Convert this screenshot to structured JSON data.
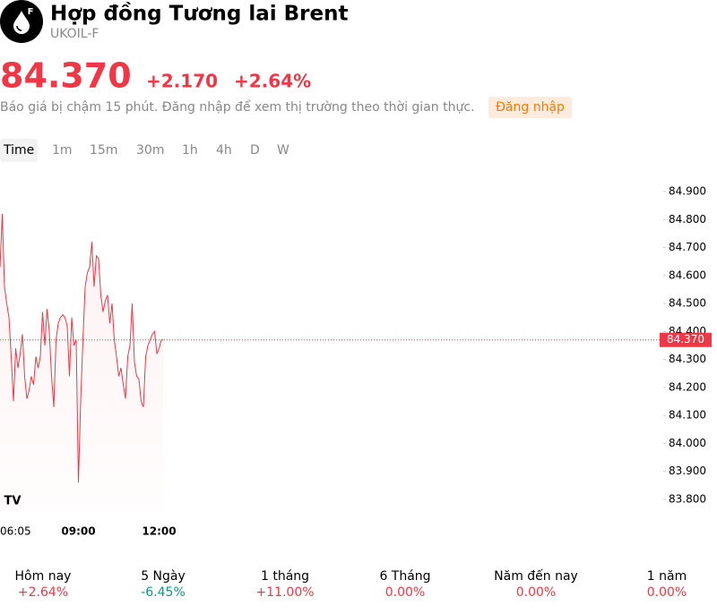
{
  "header": {
    "title": "Hợp đồng Tương lai Brent",
    "symbol": "UKOIL-F",
    "logo_letter": "F"
  },
  "quote": {
    "price": "84.370",
    "change": "+2.170",
    "change_percent": "+2.64%",
    "notice": "Báo giá bị chậm 15 phút. Đăng nhập để xem thị trường theo thời gian thực.",
    "login": "Đăng nhập"
  },
  "intervals": [
    "Time",
    "1m",
    "15m",
    "30m",
    "1h",
    "4h",
    "D",
    "W"
  ],
  "chart_data": {
    "type": "line",
    "color": "#f23645",
    "categories": [
      "06:05",
      null,
      null,
      null,
      null,
      null,
      null,
      null,
      null,
      null,
      null,
      null,
      null,
      null,
      null,
      null,
      null,
      null,
      null,
      null,
      null,
      null,
      null,
      null,
      null,
      null,
      null,
      null,
      null,
      null,
      null,
      null,
      null,
      null,
      null,
      "09:00",
      null,
      null,
      null,
      null,
      null,
      null,
      null,
      null,
      null,
      null,
      null,
      null,
      null,
      null,
      null,
      null,
      null,
      null,
      null,
      null,
      null,
      null,
      null,
      null,
      null,
      null,
      null,
      null,
      null,
      null,
      null,
      null,
      null,
      null,
      null,
      "12:00",
      null,
      null
    ],
    "values": [
      84.63,
      84.82,
      84.56,
      84.5,
      84.45,
      84.31,
      84.15,
      84.34,
      84.27,
      84.32,
      84.39,
      84.24,
      84.16,
      84.19,
      84.24,
      84.21,
      84.31,
      84.27,
      84.31,
      84.47,
      84.35,
      84.48,
      84.4,
      84.24,
      84.13,
      84.37,
      84.43,
      84.45,
      84.46,
      84.45,
      84.42,
      84.24,
      84.45,
      84.35,
      84.37,
      83.86,
      84.15,
      84.37,
      84.56,
      84.61,
      84.63,
      84.72,
      84.56,
      84.67,
      84.66,
      84.53,
      84.47,
      84.51,
      84.53,
      84.43,
      84.5,
      84.37,
      84.31,
      84.24,
      84.27,
      84.21,
      84.16,
      84.31,
      84.35,
      84.5,
      84.29,
      84.24,
      84.23,
      84.15,
      84.13,
      84.31,
      84.35,
      84.37,
      84.39,
      84.4,
      84.32,
      84.34,
      84.37,
      84.37
    ],
    "ylim": [
      83.75,
      84.95
    ],
    "yticks": [
      {
        "value": 83.8,
        "label": "83.800"
      },
      {
        "value": 83.9,
        "label": "83.900"
      },
      {
        "value": 84,
        "label": "84.000"
      },
      {
        "value": 84.1,
        "label": "84.100"
      },
      {
        "value": 84.2,
        "label": "84.200"
      },
      {
        "value": 84.3,
        "label": "84.300"
      },
      {
        "value": 84.4,
        "label": "84.400"
      },
      {
        "value": 84.5,
        "label": "84.500"
      },
      {
        "value": 84.6,
        "label": "84.600"
      },
      {
        "value": 84.7,
        "label": "84.700"
      },
      {
        "value": 84.8,
        "label": "84.800"
      },
      {
        "value": 84.9,
        "label": "84.900"
      }
    ],
    "last_price": {
      "value": 84.37,
      "label": "84.370"
    }
  },
  "performance": [
    {
      "label": "Hôm nay",
      "value": "+2.64%",
      "color": "#f23645"
    },
    {
      "label": "5 Ngày",
      "value": "-6.45%",
      "color": "#089981"
    },
    {
      "label": "1 tháng",
      "value": "+11.00%",
      "color": "#f23645"
    },
    {
      "label": "6 Tháng",
      "value": "0.00%",
      "color": "#f23645"
    },
    {
      "label": "Năm đến nay",
      "value": "0.00%",
      "color": "#f23645"
    },
    {
      "label": "1 năm",
      "value": "0.00%",
      "color": "#f23645"
    }
  ]
}
